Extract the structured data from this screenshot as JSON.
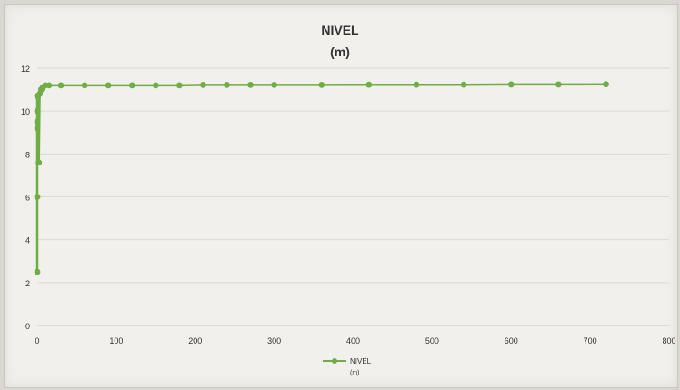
{
  "chart_data": {
    "type": "line",
    "title": [
      "NIVEL",
      "(m)"
    ],
    "xlabel": "",
    "ylabel": "",
    "xlim": [
      0,
      800
    ],
    "ylim": [
      0,
      12
    ],
    "x_ticks": [
      0,
      100,
      200,
      300,
      400,
      500,
      600,
      700,
      800
    ],
    "y_ticks": [
      0,
      2,
      4,
      6,
      8,
      10,
      12
    ],
    "grid": true,
    "legend_position": "bottom",
    "colors": {
      "series": "#70ad47",
      "grid": "#dcdad4",
      "text": "#333333"
    },
    "series": [
      {
        "name": "NIVEL",
        "legend_subtext": "(m)",
        "x": [
          0,
          0,
          0,
          0,
          0,
          0,
          1,
          2,
          3,
          5,
          7,
          10,
          15,
          30,
          60,
          90,
          120,
          150,
          180,
          210,
          240,
          270,
          300,
          360,
          420,
          480,
          540,
          600,
          660,
          720
        ],
        "y": [
          2.5,
          6.0,
          9.2,
          9.5,
          10.0,
          10.7,
          10.7,
          7.6,
          10.8,
          11.0,
          11.1,
          11.2,
          11.2,
          11.2,
          11.2,
          11.2,
          11.2,
          11.2,
          11.2,
          11.22,
          11.22,
          11.22,
          11.22,
          11.22,
          11.23,
          11.23,
          11.23,
          11.24,
          11.24,
          11.25
        ]
      }
    ]
  }
}
